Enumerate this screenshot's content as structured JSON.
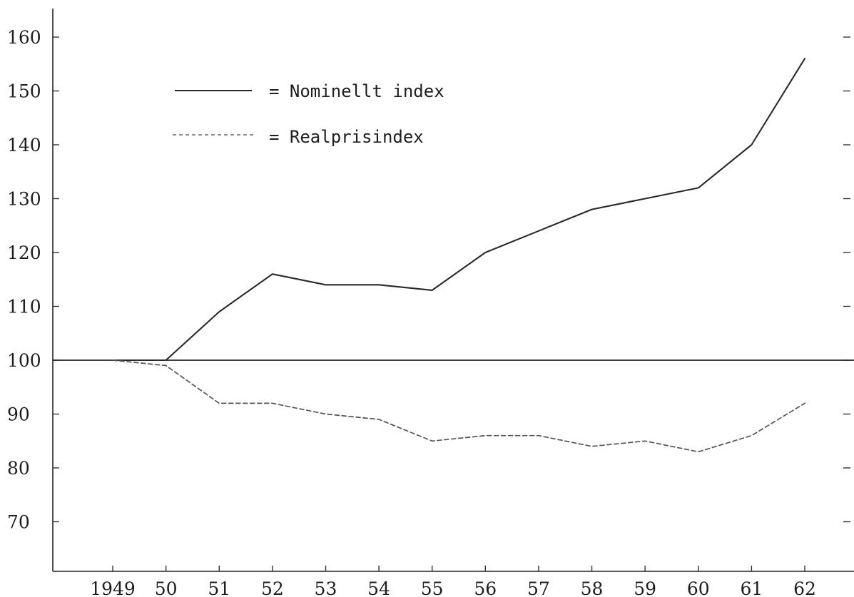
{
  "chart_data": {
    "type": "line",
    "x": [
      "1949",
      "50",
      "51",
      "52",
      "53",
      "54",
      "55",
      "56",
      "57",
      "58",
      "59",
      "60",
      "61",
      "62"
    ],
    "x_tick_labels": [
      "1949",
      "50",
      "51",
      "52",
      "53",
      "54",
      "55",
      "56",
      "57",
      "58",
      "59",
      "60",
      "61",
      "62"
    ],
    "y_tick_labels": [
      "70",
      "80",
      "90",
      "100",
      "110",
      "120",
      "130",
      "140",
      "150",
      "160"
    ],
    "ylim": [
      60,
      166
    ],
    "reference_line": 100,
    "series": [
      {
        "name": "= Nominellt index",
        "style": "solid",
        "color": "#2a2a2a",
        "values": [
          100,
          100,
          109,
          116,
          114,
          114,
          113,
          120,
          124,
          128,
          130,
          132,
          140,
          156
        ]
      },
      {
        "name": "= Realprisindex",
        "style": "dashed",
        "color": "#555555",
        "values": [
          100,
          99,
          92,
          92,
          90,
          89,
          85,
          86,
          86,
          84,
          85,
          83,
          86,
          92
        ]
      }
    ],
    "legend_position": "top-left",
    "grid": false,
    "title": "",
    "xlabel": "",
    "ylabel": ""
  }
}
